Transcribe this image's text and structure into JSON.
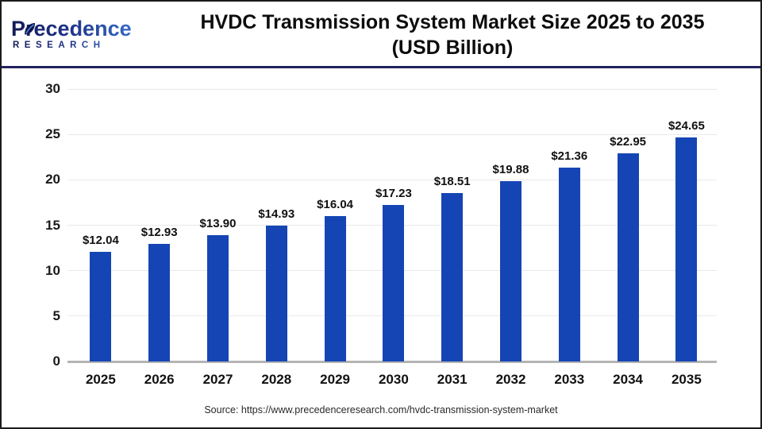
{
  "logo": {
    "name": "Precedence",
    "subname": "RESEARCH"
  },
  "header": {
    "title_line1": "HVDC Transmission System Market Size 2025 to 2035",
    "title_line2": "(USD Billion)"
  },
  "footer": {
    "source": "Source: https://www.precedenceresearch.com/hvdc-transmission-system-market"
  },
  "colors": {
    "bar": "#1545b4",
    "grid": "#e9e9e9",
    "baseline": "#b4b4b4",
    "header_rule": "#23235f",
    "frame_border": "#1b1b1b",
    "logo_dark": "#141a56",
    "logo_light": "#3a77d2",
    "title_text": "#0d0d0d",
    "tick_text": "#1a1a1a",
    "source_text": "#2a2a2a"
  },
  "chart_data": {
    "type": "bar",
    "title": "HVDC Transmission System Market Size 2025 to 2035 (USD Billion)",
    "categories": [
      "2025",
      "2026",
      "2027",
      "2028",
      "2029",
      "2030",
      "2031",
      "2032",
      "2033",
      "2034",
      "2035"
    ],
    "values": [
      12.04,
      12.93,
      13.9,
      14.93,
      16.04,
      17.23,
      18.51,
      19.88,
      21.36,
      22.95,
      24.65
    ],
    "value_labels": [
      "$12.04",
      "$12.93",
      "$13.90",
      "$14.93",
      "$16.04",
      "$17.23",
      "$18.51",
      "$19.88",
      "$21.36",
      "$22.95",
      "$24.65"
    ],
    "xlabel": "",
    "ylabel": "",
    "ylim": [
      0,
      30
    ],
    "yticks": [
      0,
      5,
      10,
      15,
      20,
      25,
      30
    ],
    "grid": true,
    "legend": false
  }
}
